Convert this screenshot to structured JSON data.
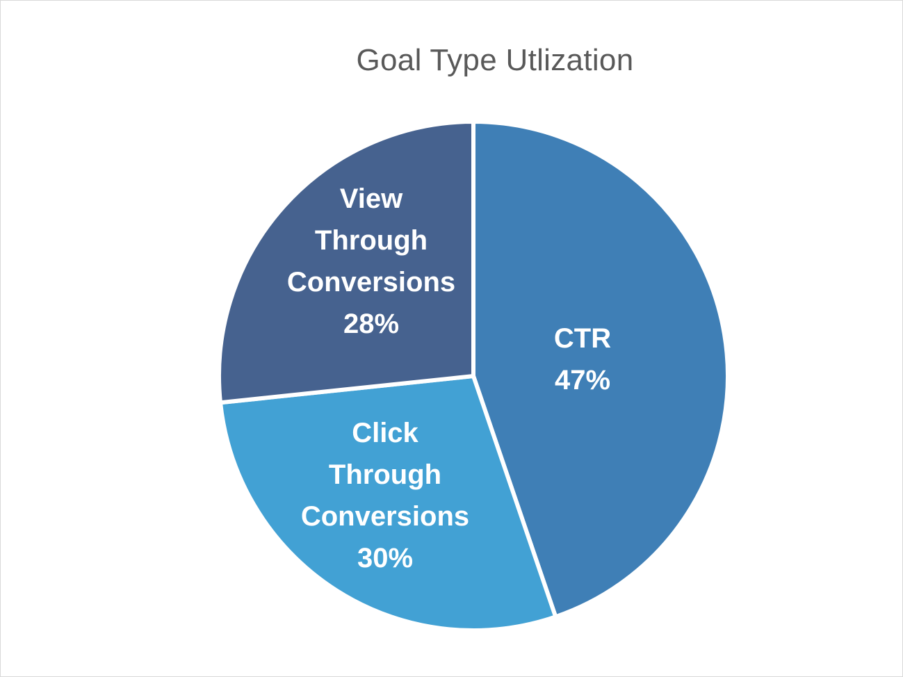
{
  "chart_data": {
    "type": "pie",
    "title": "Goal Type Utlization",
    "slices": [
      {
        "label_lines": [
          "CTR"
        ],
        "value": 47,
        "value_label": "47%",
        "color": "#3f7fb6"
      },
      {
        "label_lines": [
          "Click",
          "Through",
          "Conversions"
        ],
        "value": 30,
        "value_label": "30%",
        "color": "#42a1d4"
      },
      {
        "label_lines": [
          "View",
          "Through",
          "Conversions"
        ],
        "value": 28,
        "value_label": "28%",
        "color": "#46628f"
      }
    ],
    "legend": "none",
    "data_labels": "inside"
  },
  "colors": {
    "background": "#ffffff",
    "border": "#d9d9d9",
    "title": "#595959",
    "slice_separator": "#ffffff",
    "label_text": "#ffffff"
  }
}
